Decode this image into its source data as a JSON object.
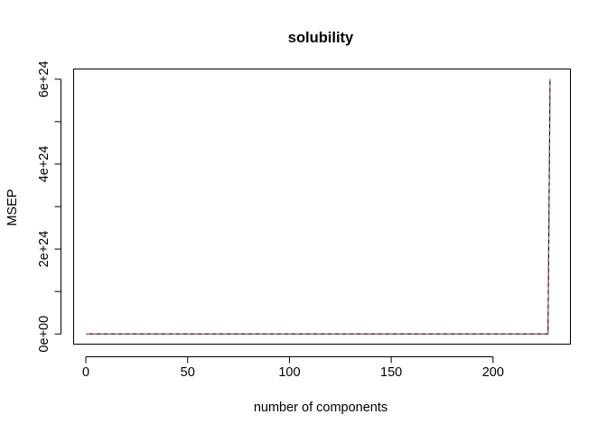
{
  "chart_data": {
    "type": "line",
    "title": "solubility",
    "xlabel": "number of components",
    "ylabel": "MSEP",
    "xlim": [
      -6,
      238
    ],
    "ylim": [
      -2.4e+23,
      6.24e+24
    ],
    "xticks": [
      0,
      50,
      100,
      150,
      200
    ],
    "xtick_labels": [
      "0",
      "50",
      "100",
      "150",
      "200"
    ],
    "yticks": [
      0,
      2e+24,
      4e+24,
      6e+24
    ],
    "ytick_labels": [
      "0e+00",
      "2e+24",
      "4e+24",
      "6e+24"
    ],
    "y_minor_ticks": [
      1e+24,
      3e+24,
      5e+24
    ],
    "grid": false,
    "legend": false,
    "series": [
      {
        "style": "solid",
        "color": "#000000",
        "x": [
          0,
          227,
          228
        ],
        "values": [
          0,
          0,
          6e+24
        ]
      },
      {
        "style": "dashed",
        "color": "#DF536B",
        "x": [
          0,
          227,
          228
        ],
        "values": [
          0,
          0,
          6e+24
        ]
      }
    ]
  }
}
